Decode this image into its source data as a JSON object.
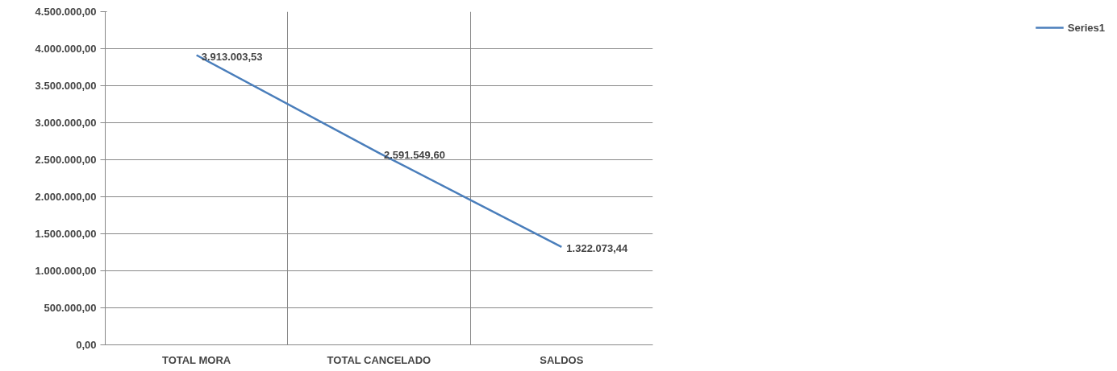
{
  "chart_data": {
    "type": "line",
    "categories": [
      "TOTAL MORA",
      "TOTAL CANCELADO",
      "SALDOS"
    ],
    "series": [
      {
        "name": "Series1",
        "color": "#4a7ebb",
        "values": [
          3913003.53,
          2591549.6,
          1322073.44
        ],
        "value_labels": [
          "3.913.003,53",
          "2.591.549,60",
          "1.322.073,44"
        ]
      }
    ],
    "ylim": [
      0,
      4500000
    ],
    "yticks": [
      {
        "value": 0,
        "label": "0,00"
      },
      {
        "value": 500000,
        "label": "500.000,00"
      },
      {
        "value": 1000000,
        "label": "1.000.000,00"
      },
      {
        "value": 1500000,
        "label": "1.500.000,00"
      },
      {
        "value": 2000000,
        "label": "2.000.000,00"
      },
      {
        "value": 2500000,
        "label": "2.500.000,00"
      },
      {
        "value": 3000000,
        "label": "3.000.000,00"
      },
      {
        "value": 3500000,
        "label": "3.500.000,00"
      },
      {
        "value": 4000000,
        "label": "4.000.000,00"
      },
      {
        "value": 4500000,
        "label": "4.500.000,00"
      }
    ],
    "grid": true,
    "legend": "right",
    "marker": "none",
    "line_style": "solid"
  }
}
